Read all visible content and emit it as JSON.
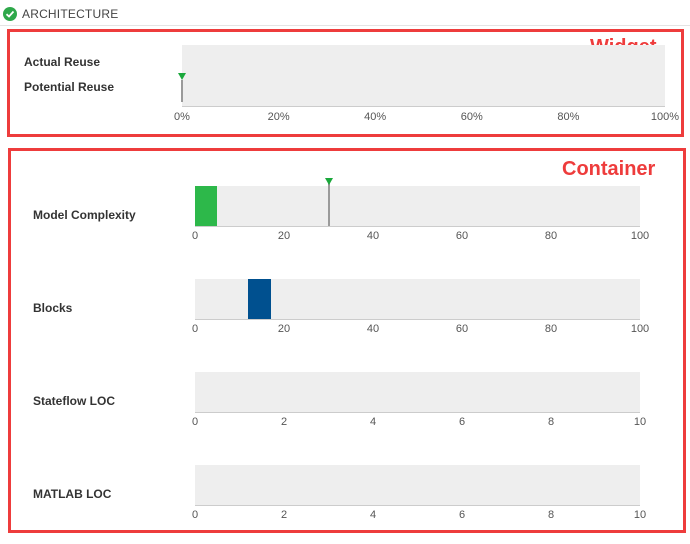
{
  "header": {
    "title": "ARCHITECTURE",
    "status_icon": "check-circle-icon",
    "status_color": "#2ea84a"
  },
  "annotations": {
    "color": "#ee3c3c",
    "widget_label": "Widget",
    "container_label": "Container"
  },
  "widget": {
    "metrics": [
      {
        "label": "Actual Reuse"
      },
      {
        "label": "Potential Reuse"
      }
    ],
    "axis_ticks": [
      "0%",
      "20%",
      "40%",
      "60%",
      "80%",
      "100%"
    ],
    "axis_max": 100,
    "marker_value": 0,
    "marker_color": "#1aa83b"
  },
  "container": {
    "rows": [
      {
        "label": "Model Complexity",
        "ticks": [
          "0",
          "20",
          "40",
          "60",
          "80",
          "100"
        ],
        "max": 100,
        "bar": {
          "start": 0,
          "end": 5,
          "color": "#2db84a"
        },
        "marker_value": 30
      },
      {
        "label": "Blocks",
        "ticks": [
          "0",
          "20",
          "40",
          "60",
          "80",
          "100"
        ],
        "max": 100,
        "bar": {
          "start": 12,
          "end": 17,
          "color": "#00508f"
        }
      },
      {
        "label": "Stateflow LOC",
        "ticks": [
          "0",
          "2",
          "4",
          "6",
          "8",
          "10"
        ],
        "max": 10
      },
      {
        "label": "MATLAB LOC",
        "ticks": [
          "0",
          "2",
          "4",
          "6",
          "8",
          "10"
        ],
        "max": 10
      }
    ]
  }
}
